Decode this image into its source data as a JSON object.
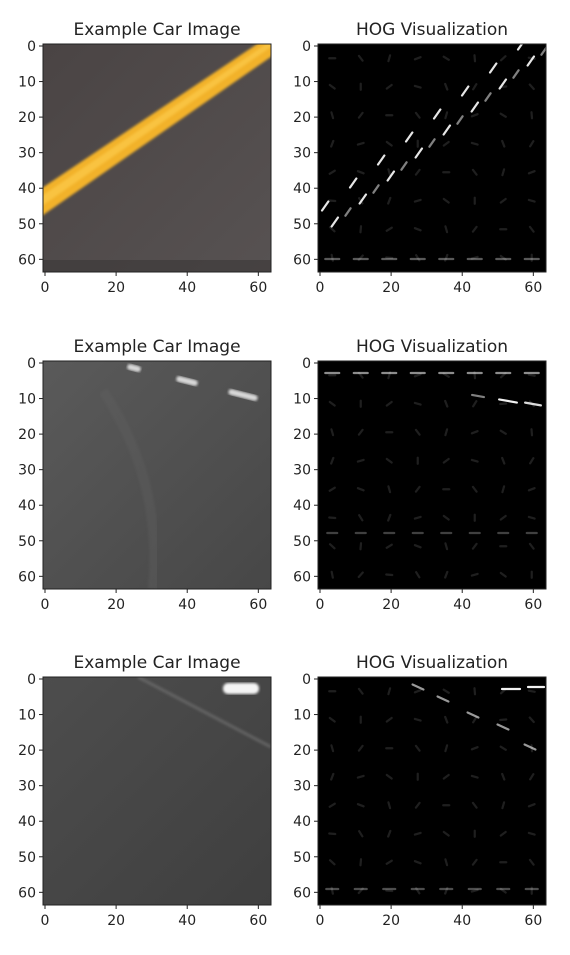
{
  "figure": {
    "panels": [
      {
        "title": "Example Car Image",
        "kind": "photo",
        "scene": "yellow-line"
      },
      {
        "title": "HOG Visualization",
        "kind": "hog",
        "scene": "yellow-line"
      },
      {
        "title": "Example Car Image",
        "kind": "photo",
        "scene": "dashed-lane"
      },
      {
        "title": "HOG Visualization",
        "kind": "hog",
        "scene": "dashed-lane"
      },
      {
        "title": "Example Car Image",
        "kind": "photo",
        "scene": "light-streak"
      },
      {
        "title": "HOG Visualization",
        "kind": "hog",
        "scene": "light-streak"
      }
    ],
    "y_ticks": [
      "0",
      "10",
      "20",
      "30",
      "40",
      "50",
      "60"
    ],
    "x_ticks": [
      "0",
      "20",
      "40",
      "60"
    ],
    "axis_range": {
      "x": [
        0,
        63
      ],
      "y": [
        0,
        63
      ]
    },
    "colors": {
      "asphalt": "#4d4b4b",
      "yellow_line": "#f2b22a",
      "hog_background": "#000000",
      "hog_gradient": "#ffffff"
    }
  }
}
